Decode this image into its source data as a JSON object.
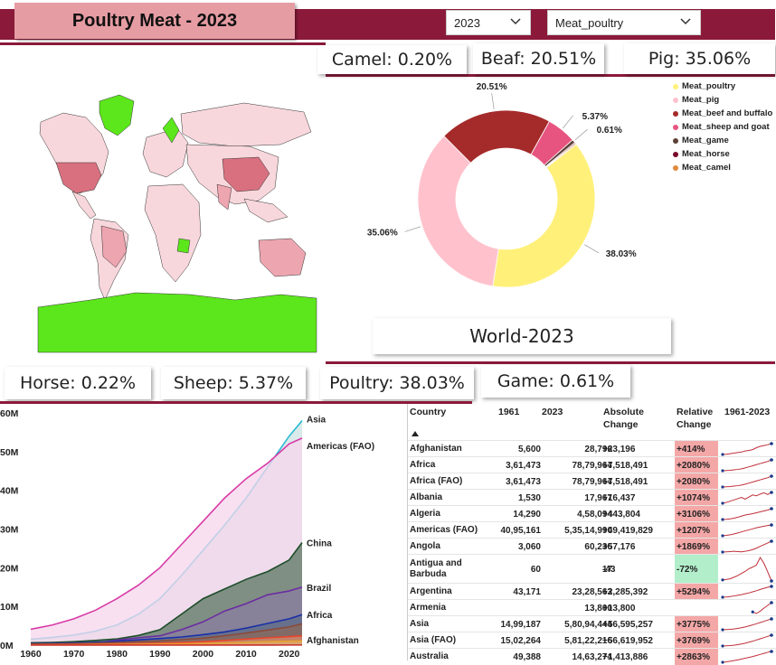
{
  "header": {
    "title": "Poultry Meat - 2023",
    "year_select": "2023",
    "meat_select": "Meat_poultry"
  },
  "kpis": {
    "camel": "Camel: 0.20%",
    "beef": "Beaf: 20.51%",
    "pig": "Pig: 35.06%",
    "horse": "Horse: 0.22%",
    "sheep": "Sheep: 5.37%",
    "poultry": "Poultry: 38.03%",
    "game": "Game: 0.61%"
  },
  "map": {
    "highlight_color": "#5ce61c",
    "base_color": "#f8d7dc",
    "mid_color": "#eda5b0",
    "dark_color": "#d9707f"
  },
  "donut": {
    "caption": "World-2023"
  },
  "table": {
    "headers": {
      "country": "Country",
      "y1961": "1961",
      "y2023": "2023",
      "abs": "Absolute Change",
      "rel": "Relative Change",
      "trend": "1961-2023"
    },
    "rows": [
      {
        "country": "Afghanistan",
        "v1961": "5,600",
        "v2023": "28,796",
        "abs": "+23,196",
        "rel": "+414%",
        "rel_color": "#f4a7a7",
        "trend": [
          1,
          1.1,
          1.3,
          1.5,
          1.7,
          1.9,
          2.3,
          2.5,
          2.8,
          3.5,
          4,
          4.3,
          4.6,
          5
        ]
      },
      {
        "country": "Africa",
        "v1961": "3,61,473",
        "v2023": "78,79,964",
        "abs": "+7,518,491",
        "rel": "+2080%",
        "rel_color": "#f4a7a7",
        "trend": [
          1,
          1.1,
          1.2,
          1.4,
          1.6,
          1.9,
          2.3,
          2.8,
          3.3,
          3.8,
          4.3,
          4.8,
          5.3,
          6
        ]
      },
      {
        "country": "Africa (FAO)",
        "v1961": "3,61,473",
        "v2023": "78,79,964",
        "abs": "+7,518,491",
        "rel": "+2080%",
        "rel_color": "#f4a7a7",
        "trend": [
          1,
          1.1,
          1.2,
          1.4,
          1.6,
          1.9,
          2.3,
          2.8,
          3.3,
          3.8,
          4.3,
          4.8,
          5.3,
          6
        ]
      },
      {
        "country": "Albania",
        "v1961": "1,530",
        "v2023": "17,967",
        "abs": "+16,437",
        "rel": "+1074%",
        "rel_color": "#f4a7a7",
        "trend": [
          1,
          1.2,
          1.5,
          1.8,
          2.1,
          2.4,
          2,
          2.5,
          3,
          2.8,
          3.2,
          3.5,
          3.1,
          3.6
        ]
      },
      {
        "country": "Algeria",
        "v1961": "14,290",
        "v2023": "4,58,094",
        "abs": "+443,804",
        "rel": "+3106%",
        "rel_color": "#f4a7a7",
        "trend": [
          1,
          1.1,
          1.3,
          1.6,
          2,
          2.5,
          3,
          3.3,
          3.6,
          4,
          4.4,
          4.8,
          5.2,
          5.8
        ]
      },
      {
        "country": "Americas (FAO)",
        "v1961": "40,95,161",
        "v2023": "5,35,14,990",
        "abs": "+49,419,829",
        "rel": "+1207%",
        "rel_color": "#f4a7a7",
        "trend": [
          1,
          1.2,
          1.5,
          1.9,
          2.4,
          2.9,
          3.4,
          3.9,
          4.4,
          4.9,
          5.3,
          5.7,
          6,
          6.3
        ]
      },
      {
        "country": "Angola",
        "v1961": "3,060",
        "v2023": "60,236",
        "abs": "+57,176",
        "rel": "+1869%",
        "rel_color": "#f4a7a7",
        "trend": [
          1,
          1.1,
          1.2,
          1.3,
          1.2,
          1.1,
          1.3,
          1.6,
          2,
          2.6,
          3.3,
          4,
          4.7,
          5.4
        ]
      },
      {
        "country": "Antigua and Barbuda",
        "v1961": "60",
        "v2023": "17",
        "abs": "-43",
        "rel": "-72%",
        "rel_color": "#b3eecb",
        "trend": [
          1,
          1.1,
          1.2,
          1.5,
          1.8,
          2.2,
          2.6,
          3.1,
          3.4,
          3.8,
          5.2,
          4.1,
          2.5,
          0.8
        ]
      },
      {
        "country": "Argentina",
        "v1961": "43,171",
        "v2023": "23,28,563",
        "abs": "+2,285,392",
        "rel": "+5294%",
        "rel_color": "#f4a7a7",
        "trend": [
          1,
          1.1,
          1.3,
          1.6,
          1.9,
          2.2,
          2.6,
          3,
          3.5,
          4,
          4.6,
          5.1,
          5.6,
          6
        ]
      },
      {
        "country": "Armenia",
        "v1961": "",
        "v2023": "13,800",
        "abs": "+13,800",
        "rel": "",
        "rel_color": "#ffffff",
        "trend": [
          null,
          null,
          null,
          null,
          null,
          null,
          null,
          null,
          2,
          1.6,
          2.2,
          3,
          3.7,
          4.4
        ]
      },
      {
        "country": "Asia",
        "v1961": "14,99,187",
        "v2023": "5,80,94,444",
        "abs": "+56,595,257",
        "rel": "+3775%",
        "rel_color": "#f4a7a7",
        "trend": [
          1,
          1.1,
          1.2,
          1.4,
          1.7,
          2,
          2.4,
          2.9,
          3.4,
          4,
          4.6,
          5.2,
          5.8,
          6.4
        ]
      },
      {
        "country": "Asia (FAO)",
        "v1961": "15,02,264",
        "v2023": "5,81,22,216",
        "abs": "+56,619,952",
        "rel": "+3769%",
        "rel_color": "#f4a7a7",
        "trend": [
          1,
          1.1,
          1.2,
          1.4,
          1.7,
          2,
          2.4,
          2.9,
          3.4,
          4,
          4.6,
          5.2,
          5.8,
          6.4
        ]
      },
      {
        "country": "Australia",
        "v1961": "49,388",
        "v2023": "14,63,274",
        "abs": "+1,413,886",
        "rel": "+2863%",
        "rel_color": "#f4a7a7",
        "trend": [
          1,
          1.2,
          1.5,
          1.8,
          2.1,
          2.5,
          2.9,
          3.3,
          3.7,
          4.2,
          4.7,
          5.2,
          5.7,
          6.1
        ]
      }
    ]
  },
  "chart_data": [
    {
      "type": "pie",
      "title": "",
      "labels": [
        "Meat_poultry",
        "Meat_pig",
        "Meat_beef and buffalo",
        "Meat_sheep and goat",
        "Meat_game",
        "Meat_horse",
        "Meat_camel"
      ],
      "values": [
        38.03,
        35.06,
        20.51,
        5.37,
        0.61,
        0.22,
        0.2
      ],
      "data_labels": [
        "38.03%",
        "35.06%",
        "20.51%",
        "5.37%",
        "0.61%",
        "",
        ""
      ],
      "colors": [
        "#fff07a",
        "#ffc2cd",
        "#a52a2a",
        "#e75480",
        "#5d4037",
        "#7b0a2a",
        "#e08a3c"
      ],
      "legend_labels": [
        "Meat_poultry",
        "Meat_pig",
        "Meat_beef and buffalo",
        "Meat_sheep and goat",
        "Meat_game",
        "Meat_horse",
        "Meat_camel"
      ],
      "legend_position": "right",
      "donut": true
    },
    {
      "type": "area",
      "x": [
        1960,
        1965,
        1970,
        1975,
        1980,
        1985,
        1990,
        1995,
        2000,
        2005,
        2010,
        2015,
        2020,
        2023
      ],
      "ylim": [
        0,
        60000000
      ],
      "yticks": [
        0,
        10000000,
        20000000,
        30000000,
        40000000,
        50000000,
        60000000
      ],
      "yticklabels": [
        "0M",
        "10M",
        "20M",
        "30M",
        "40M",
        "50M",
        "60M"
      ],
      "xticks": [
        1960,
        1970,
        1980,
        1990,
        2000,
        2010,
        2020
      ],
      "xticklabels": [
        "1960",
        "1970",
        "1980",
        "1990",
        "2000",
        "2010",
        "2020"
      ],
      "series": [
        {
          "name": "Asia",
          "color": "#2bbcd4",
          "fill": "#cde3e4",
          "values": [
            1500000,
            2000000,
            2600000,
            3600000,
            5200000,
            8000000,
            12000000,
            18000000,
            24500000,
            31000000,
            38000000,
            46000000,
            54000000,
            58000000
          ]
        },
        {
          "name": "Americas (FAO)",
          "color": "#d83aa6",
          "fill": "#f6d6ec",
          "values": [
            4100000,
            5200000,
            6800000,
            9000000,
            12000000,
            15500000,
            20000000,
            26000000,
            32000000,
            38000000,
            43000000,
            47000000,
            52000000,
            53500000
          ]
        },
        {
          "name": "China",
          "color": "#1e4d2b",
          "fill": "#5a7560",
          "values": [
            600000,
            700000,
            900000,
            1200000,
            1600000,
            2500000,
            4000000,
            8000000,
            12000000,
            14500000,
            17000000,
            19000000,
            22000000,
            26500000
          ]
        },
        {
          "name": "Brazil",
          "color": "#6b2da0",
          "fill": "#8a7da0",
          "values": [
            200000,
            250000,
            300000,
            500000,
            1300000,
            1900000,
            2400000,
            4000000,
            6000000,
            8800000,
            10700000,
            13000000,
            14000000,
            15000000
          ]
        },
        {
          "name": "Africa",
          "color": "#1b2fa8",
          "fill": "#5c6a88",
          "values": [
            361473,
            450000,
            560000,
            750000,
            1000000,
            1350000,
            1700000,
            2100000,
            2700000,
            3400000,
            4400000,
            5600000,
            6800000,
            7879964
          ]
        },
        {
          "name": "",
          "color": "#8b4a3a",
          "fill": "#8b6a5a",
          "values": [
            250000,
            300000,
            400000,
            500000,
            700000,
            900000,
            1100000,
            1400000,
            1800000,
            2400000,
            3100000,
            3900000,
            4700000,
            5500000
          ]
        },
        {
          "name": "",
          "color": "#e8452c",
          "fill": "#d88a6a",
          "values": [
            100000,
            120000,
            160000,
            220000,
            300000,
            400000,
            520000,
            680000,
            900000,
            1200000,
            1550000,
            1900000,
            2200000,
            2400000
          ]
        },
        {
          "name": "",
          "color": "#e8a030",
          "fill": "#e0b070",
          "values": [
            60000,
            70000,
            90000,
            120000,
            160000,
            210000,
            270000,
            350000,
            450000,
            580000,
            720000,
            880000,
            1000000,
            1100000
          ]
        },
        {
          "name": "Afghanistan",
          "color": "#c8302a",
          "fill": "#c8302a",
          "values": [
            5600,
            6500,
            7500,
            9000,
            10000,
            11000,
            12500,
            14000,
            16000,
            19000,
            22000,
            25000,
            27500,
            28796
          ]
        }
      ],
      "series_labels_shown": [
        "Asia",
        "Americas (FAO)",
        "China",
        "Brazil",
        "Africa",
        "Afghanistan"
      ]
    }
  ]
}
